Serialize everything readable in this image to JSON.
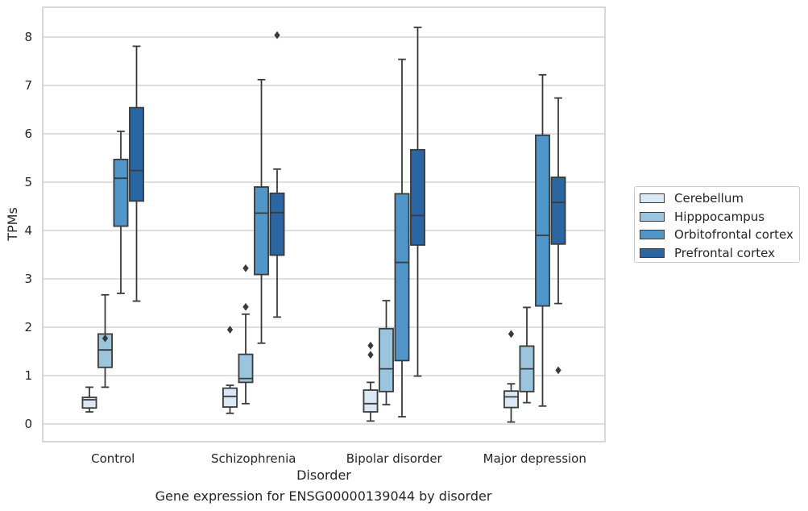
{
  "caption": "Gene expression for ENSG00000139044 by disorder",
  "chart_data": {
    "type": "boxplot",
    "xlabel": "Disorder",
    "ylabel": "TPMs",
    "ylim": [
      -0.35,
      8.6
    ],
    "yticks": [
      0,
      1,
      2,
      3,
      4,
      5,
      6,
      7,
      8
    ],
    "grid": "horizontal",
    "legend_position": "right",
    "categories": [
      "Control",
      "Schizophrenia",
      "Bipolar disorder",
      "Major depression"
    ],
    "series": [
      {
        "name": "Cerebellum",
        "color": "#dae8f5",
        "boxes": [
          {
            "whisker_low": 0.25,
            "q1": 0.33,
            "median": 0.5,
            "q3": 0.55,
            "whisker_high": 0.76,
            "outliers": []
          },
          {
            "whisker_low": 0.22,
            "q1": 0.35,
            "median": 0.57,
            "q3": 0.74,
            "whisker_high": 0.8,
            "outliers": [
              1.95
            ]
          },
          {
            "whisker_low": 0.06,
            "q1": 0.25,
            "median": 0.42,
            "q3": 0.7,
            "whisker_high": 0.86,
            "outliers": [
              1.43,
              1.62
            ]
          },
          {
            "whisker_low": 0.04,
            "q1": 0.34,
            "median": 0.56,
            "q3": 0.68,
            "whisker_high": 0.83,
            "outliers": [
              1.86
            ]
          }
        ]
      },
      {
        "name": "Hipppocampus",
        "color": "#9ac5dd",
        "boxes": [
          {
            "whisker_low": 0.76,
            "q1": 1.17,
            "median": 1.53,
            "q3": 1.86,
            "whisker_high": 2.67,
            "outliers": [
              1.77
            ]
          },
          {
            "whisker_low": 0.42,
            "q1": 0.86,
            "median": 0.94,
            "q3": 1.44,
            "whisker_high": 2.27,
            "outliers": [
              2.42,
              3.22
            ]
          },
          {
            "whisker_low": 0.4,
            "q1": 0.67,
            "median": 1.14,
            "q3": 1.97,
            "whisker_high": 2.55,
            "outliers": []
          },
          {
            "whisker_low": 0.44,
            "q1": 0.67,
            "median": 1.14,
            "q3": 1.61,
            "whisker_high": 2.41,
            "outliers": []
          }
        ]
      },
      {
        "name": "Orbitofrontal cortex",
        "color": "#5096c8",
        "boxes": [
          {
            "whisker_low": 2.7,
            "q1": 4.09,
            "median": 5.08,
            "q3": 5.47,
            "whisker_high": 6.05,
            "outliers": []
          },
          {
            "whisker_low": 1.67,
            "q1": 3.09,
            "median": 4.36,
            "q3": 4.9,
            "whisker_high": 7.12,
            "outliers": []
          },
          {
            "whisker_low": 0.15,
            "q1": 1.31,
            "median": 3.34,
            "q3": 4.76,
            "whisker_high": 7.54,
            "outliers": []
          },
          {
            "whisker_low": 0.37,
            "q1": 2.44,
            "median": 3.9,
            "q3": 5.97,
            "whisker_high": 7.22,
            "outliers": []
          }
        ]
      },
      {
        "name": "Prefrontal cortex",
        "color": "#2a66a3",
        "boxes": [
          {
            "whisker_low": 2.54,
            "q1": 4.61,
            "median": 5.24,
            "q3": 6.54,
            "whisker_high": 7.81,
            "outliers": []
          },
          {
            "whisker_low": 2.21,
            "q1": 3.49,
            "median": 4.37,
            "q3": 4.77,
            "whisker_high": 5.27,
            "outliers": [
              8.04
            ]
          },
          {
            "whisker_low": 0.99,
            "q1": 3.7,
            "median": 4.31,
            "q3": 5.67,
            "whisker_high": 8.2,
            "outliers": []
          },
          {
            "whisker_low": 2.49,
            "q1": 3.72,
            "median": 4.58,
            "q3": 5.1,
            "whisker_high": 6.74,
            "outliers": [
              1.11
            ]
          }
        ]
      }
    ]
  }
}
